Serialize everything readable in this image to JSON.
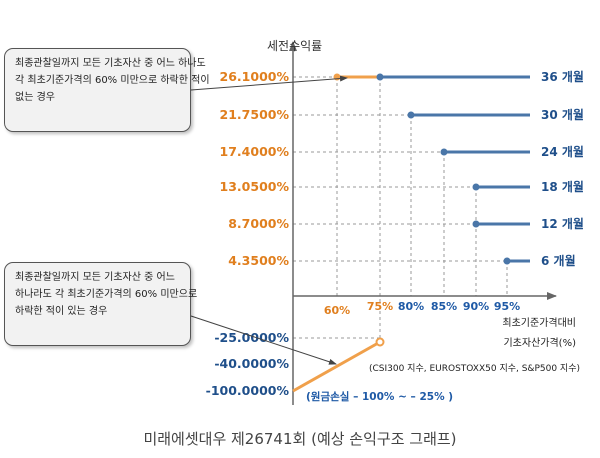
{
  "chart_data": {
    "type": "line",
    "ylabel": "세전수익률",
    "xlabel_lines": [
      "최초기준가격대비",
      "기초자산가격(%)"
    ],
    "underlying_note": "(CSI300 지수, EUROSTOXX50 지수, S&P500 지수)",
    "x_ticks": [
      {
        "label": "60%",
        "value": 60
      },
      {
        "label": "75%",
        "value": 75
      },
      {
        "label": "80%",
        "value": 80
      },
      {
        "label": "85%",
        "value": 85
      },
      {
        "label": "90%",
        "value": 90
      },
      {
        "label": "95%",
        "value": 95
      }
    ],
    "y_ticks": [
      {
        "label": "26.1000%",
        "value": 26.1
      },
      {
        "label": "21.7500%",
        "value": 21.75
      },
      {
        "label": "17.4000%",
        "value": 17.4
      },
      {
        "label": "13.0500%",
        "value": 13.05
      },
      {
        "label": "8.7000%",
        "value": 8.7
      },
      {
        "label": "4.3500%",
        "value": 4.35
      },
      {
        "label": "-25.0000%",
        "value": -25
      },
      {
        "label": "-40.0000%",
        "value": -40
      },
      {
        "label": "-100.0000%",
        "value": -100
      }
    ],
    "gain_series": [
      {
        "name": "36 개월",
        "x_start": 75,
        "y": 26.1
      },
      {
        "name": "30 개월",
        "x_start": 80,
        "y": 21.75
      },
      {
        "name": "24 개월",
        "x_start": 85,
        "y": 17.4
      },
      {
        "name": "18 개월",
        "x_start": 90,
        "y": 13.05
      },
      {
        "name": "12 개월",
        "x_start": 90,
        "y": 8.7
      },
      {
        "name": "6 개월",
        "x_start": 95,
        "y": 4.35
      }
    ],
    "no_knock_in_segment": {
      "x": [
        60,
        75
      ],
      "y": 26.1
    },
    "loss_series": {
      "x_start": 0,
      "y_start": -100,
      "x_end": 75,
      "y_end": -25
    },
    "loss_note": "(원금손실 – 100% ~ – 25% )",
    "colors": {
      "gain": "#4a76a8",
      "loss": "#f0a04b",
      "axis": "#666666"
    }
  },
  "callouts": {
    "top": [
      "최종관찰일까지 모든 기초자산 중 어느 하나도",
      "각 최초기준가격의 60% 미만으로 하락한 적이",
      "없는 경우"
    ],
    "bottom": [
      "최종관찰일까지 모든 기초자산 중 어느",
      "하나라도 각 최초기준가격의 60% 미만으로",
      "하락한 적이 있는 경우"
    ]
  },
  "caption": "미래에셋대우 제26741회 (예상 손익구조 그래프)"
}
